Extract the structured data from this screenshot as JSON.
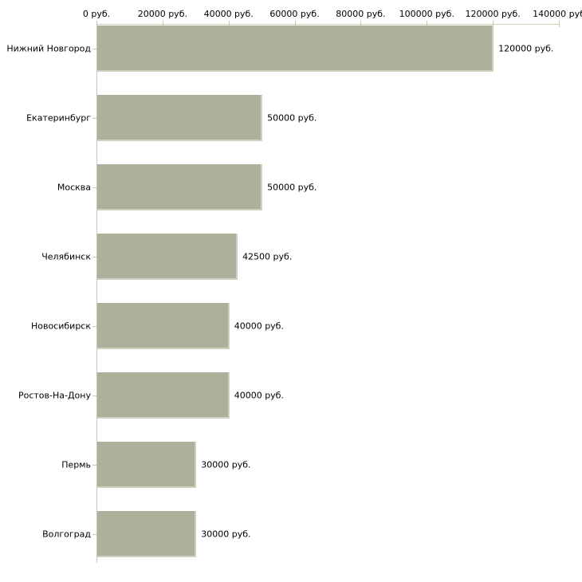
{
  "chart_data": {
    "type": "bar",
    "orientation": "horizontal",
    "title": "",
    "xlabel": "",
    "ylabel": "",
    "xlim": [
      0,
      140000
    ],
    "grid": false,
    "legend": "none",
    "x_axis_position": "top",
    "categories": [
      "Нижний Новгород",
      "Екатеринбург",
      "Москва",
      "Челябинск",
      "Новосибирск",
      "Ростов-На-Дону",
      "Пермь",
      "Волгоград"
    ],
    "values": [
      120000,
      50000,
      50000,
      42500,
      40000,
      40000,
      30000,
      30000
    ],
    "value_labels": [
      "120000 руб.",
      "50000 руб.",
      "50000 руб.",
      "42500 руб.",
      "40000 руб.",
      "40000 руб.",
      "30000 руб.",
      "30000 руб."
    ],
    "x_tick_values": [
      0,
      20000,
      40000,
      60000,
      80000,
      100000,
      120000,
      140000
    ],
    "x_tick_labels": [
      "0 руб.",
      "20000 руб.",
      "40000 руб.",
      "60000 руб.",
      "80000 руб.",
      "100000 руб.",
      "120000 руб.",
      "140000 руб"
    ],
    "colors": {
      "bar_fill": "#abb19a",
      "bar_edge": "#cdd1bf",
      "axis_line": "#d0cdbc",
      "y_axis_line": "#c6c6c6",
      "text": "#000000",
      "background": "#ffffff"
    }
  },
  "layout_note": "horizontal bar chart, value labels right of bars, category labels left of axis"
}
